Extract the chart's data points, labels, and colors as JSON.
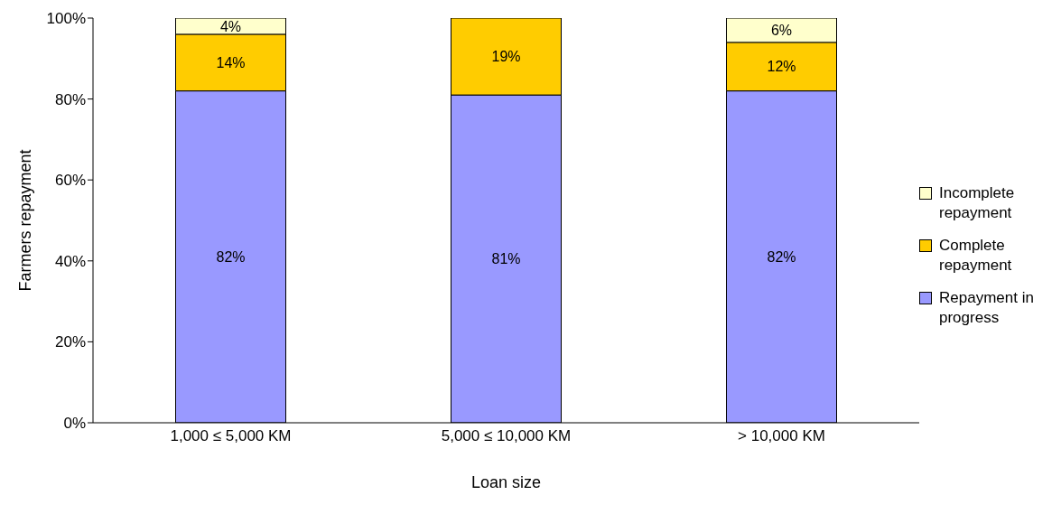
{
  "chart_data": {
    "type": "bar",
    "stacked": true,
    "xlabel": "Loan size",
    "ylabel": "Farmers repayment",
    "categories": [
      "1,000 ≤ 5,000 KM",
      "5,000 ≤ 10,000 KM",
      "> 10,000 KM"
    ],
    "series": [
      {
        "name": "Repayment in progress",
        "color": "#9999ff",
        "values": [
          82,
          81,
          82
        ],
        "value_labels": [
          "82%",
          "81%",
          "82%"
        ]
      },
      {
        "name": "Complete repayment",
        "color": "#ffcc00",
        "values": [
          14,
          19,
          12
        ],
        "value_labels": [
          "14%",
          "19%",
          "12%"
        ]
      },
      {
        "name": "Incomplete repayment",
        "color": "#ffffcc",
        "values": [
          4,
          null,
          6
        ],
        "value_labels": [
          "4%",
          null,
          "6%"
        ]
      }
    ],
    "ylim": [
      0,
      100
    ],
    "yticks": [
      {
        "value": 0,
        "label": "0%"
      },
      {
        "value": 20,
        "label": "20%"
      },
      {
        "value": 40,
        "label": "40%"
      },
      {
        "value": 60,
        "label": "60%"
      },
      {
        "value": 80,
        "label": "80%"
      },
      {
        "value": 100,
        "label": "100%"
      }
    ],
    "grid": false,
    "legend": "right"
  }
}
